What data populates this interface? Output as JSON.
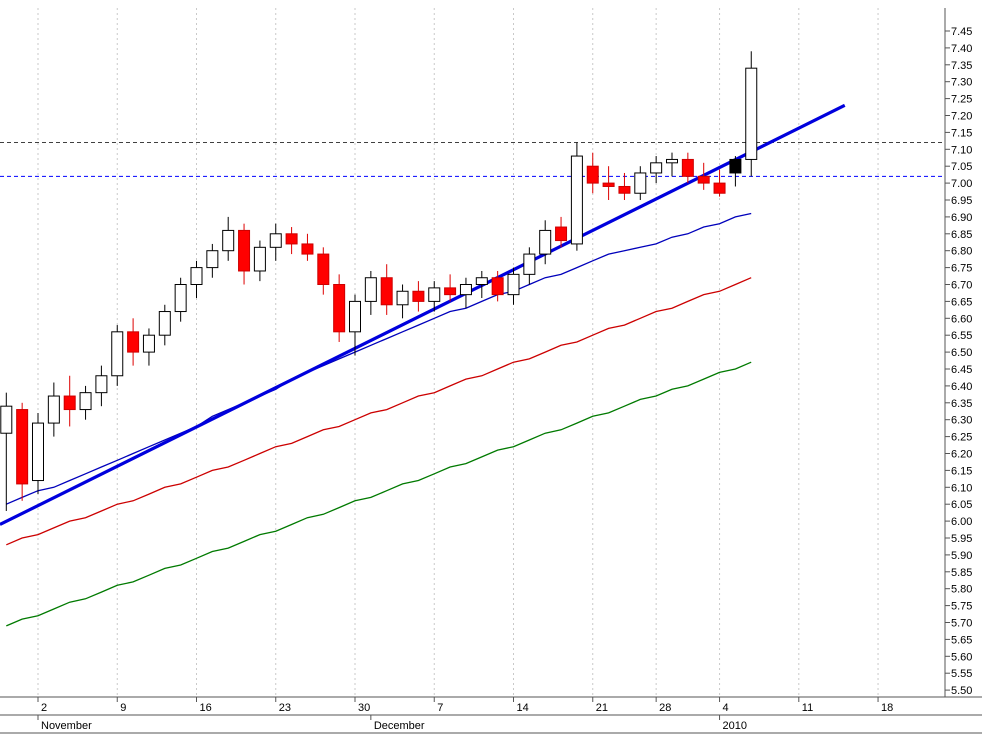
{
  "chart_data": {
    "type": "candlestick",
    "title": "",
    "xlabel": "",
    "ylabel": "",
    "grid": "vertical-weekly-dashed",
    "legend": "none",
    "y_axis": {
      "min": 5.5,
      "max": 7.45,
      "tick_step": 0.05,
      "tick_labels": [
        "7.45",
        "7.40",
        "7.35",
        "7.30",
        "7.25",
        "7.20",
        "7.15",
        "7.10",
        "7.05",
        "7.00",
        "6.95",
        "6.90",
        "6.85",
        "6.80",
        "6.75",
        "6.70",
        "6.65",
        "6.60",
        "6.55",
        "6.50",
        "6.45",
        "6.40",
        "6.35",
        "6.30",
        "6.25",
        "6.20",
        "6.15",
        "6.10",
        "6.05",
        "6.00",
        "5.95",
        "5.90",
        "5.85",
        "5.80",
        "5.75",
        "5.70",
        "5.65",
        "5.60",
        "5.55",
        "5.50"
      ]
    },
    "x_axis": {
      "week_ticks": [
        {
          "label": "2",
          "day": 2
        },
        {
          "label": "9",
          "day": 7
        },
        {
          "label": "16",
          "day": 12
        },
        {
          "label": "23",
          "day": 17
        },
        {
          "label": "30",
          "day": 22
        },
        {
          "label": "7",
          "day": 27
        },
        {
          "label": "14",
          "day": 32
        },
        {
          "label": "21",
          "day": 37
        },
        {
          "label": "28",
          "day": 41
        },
        {
          "label": "4",
          "day": 45
        },
        {
          "label": "11",
          "day": 50
        },
        {
          "label": "18",
          "day": 55
        }
      ],
      "month_labels": [
        {
          "label": "November",
          "day": 2
        },
        {
          "label": "December",
          "day": 23
        },
        {
          "label": "2010",
          "day": 45
        }
      ]
    },
    "candles": [
      {
        "d": "Oct 29",
        "o": 6.26,
        "h": 6.38,
        "l": 6.03,
        "c": 6.34
      },
      {
        "d": "Oct 30",
        "o": 6.33,
        "h": 6.35,
        "l": 6.06,
        "c": 6.11
      },
      {
        "d": "Nov 2",
        "o": 6.12,
        "h": 6.32,
        "l": 6.08,
        "c": 6.29
      },
      {
        "d": "Nov 3",
        "o": 6.29,
        "h": 6.41,
        "l": 6.25,
        "c": 6.37
      },
      {
        "d": "Nov 4",
        "o": 6.37,
        "h": 6.43,
        "l": 6.28,
        "c": 6.33
      },
      {
        "d": "Nov 5",
        "o": 6.33,
        "h": 6.4,
        "l": 6.3,
        "c": 6.38
      },
      {
        "d": "Nov 6",
        "o": 6.38,
        "h": 6.46,
        "l": 6.34,
        "c": 6.43
      },
      {
        "d": "Nov 9",
        "o": 6.43,
        "h": 6.58,
        "l": 6.4,
        "c": 6.56
      },
      {
        "d": "Nov 10",
        "o": 6.56,
        "h": 6.6,
        "l": 6.46,
        "c": 6.5
      },
      {
        "d": "Nov 11",
        "o": 6.5,
        "h": 6.57,
        "l": 6.46,
        "c": 6.55
      },
      {
        "d": "Nov 12",
        "o": 6.55,
        "h": 6.64,
        "l": 6.52,
        "c": 6.62
      },
      {
        "d": "Nov 13",
        "o": 6.62,
        "h": 6.72,
        "l": 6.59,
        "c": 6.7
      },
      {
        "d": "Nov 16",
        "o": 6.7,
        "h": 6.77,
        "l": 6.66,
        "c": 6.75
      },
      {
        "d": "Nov 17",
        "o": 6.75,
        "h": 6.82,
        "l": 6.72,
        "c": 6.8
      },
      {
        "d": "Nov 18",
        "o": 6.8,
        "h": 6.9,
        "l": 6.77,
        "c": 6.86
      },
      {
        "d": "Nov 19",
        "o": 6.86,
        "h": 6.88,
        "l": 6.7,
        "c": 6.74
      },
      {
        "d": "Nov 20",
        "o": 6.74,
        "h": 6.83,
        "l": 6.71,
        "c": 6.81
      },
      {
        "d": "Nov 23",
        "o": 6.81,
        "h": 6.88,
        "l": 6.77,
        "c": 6.85
      },
      {
        "d": "Nov 24",
        "o": 6.85,
        "h": 6.87,
        "l": 6.79,
        "c": 6.82
      },
      {
        "d": "Nov 25",
        "o": 6.82,
        "h": 6.85,
        "l": 6.77,
        "c": 6.79
      },
      {
        "d": "Nov 26",
        "o": 6.79,
        "h": 6.81,
        "l": 6.67,
        "c": 6.7
      },
      {
        "d": "Nov 27",
        "o": 6.7,
        "h": 6.73,
        "l": 6.53,
        "c": 6.56
      },
      {
        "d": "Nov 30",
        "o": 6.56,
        "h": 6.67,
        "l": 6.49,
        "c": 6.65
      },
      {
        "d": "Dec 1",
        "o": 6.65,
        "h": 6.74,
        "l": 6.61,
        "c": 6.72
      },
      {
        "d": "Dec 2",
        "o": 6.72,
        "h": 6.76,
        "l": 6.61,
        "c": 6.64
      },
      {
        "d": "Dec 3",
        "o": 6.64,
        "h": 6.7,
        "l": 6.6,
        "c": 6.68
      },
      {
        "d": "Dec 4",
        "o": 6.68,
        "h": 6.71,
        "l": 6.62,
        "c": 6.65
      },
      {
        "d": "Dec 7",
        "o": 6.65,
        "h": 6.71,
        "l": 6.62,
        "c": 6.69
      },
      {
        "d": "Dec 8",
        "o": 6.69,
        "h": 6.73,
        "l": 6.65,
        "c": 6.67
      },
      {
        "d": "Dec 9",
        "o": 6.67,
        "h": 6.72,
        "l": 6.63,
        "c": 6.7
      },
      {
        "d": "Dec 10",
        "o": 6.7,
        "h": 6.74,
        "l": 6.66,
        "c": 6.72
      },
      {
        "d": "Dec 11",
        "o": 6.72,
        "h": 6.74,
        "l": 6.65,
        "c": 6.67
      },
      {
        "d": "Dec 14",
        "o": 6.67,
        "h": 6.75,
        "l": 6.64,
        "c": 6.73
      },
      {
        "d": "Dec 15",
        "o": 6.73,
        "h": 6.81,
        "l": 6.7,
        "c": 6.79
      },
      {
        "d": "Dec 16",
        "o": 6.79,
        "h": 6.89,
        "l": 6.76,
        "c": 6.86
      },
      {
        "d": "Dec 17",
        "o": 6.87,
        "h": 6.9,
        "l": 6.81,
        "c": 6.83
      },
      {
        "d": "Dec 18",
        "o": 6.82,
        "h": 7.12,
        "l": 6.8,
        "c": 7.08
      },
      {
        "d": "Dec 21",
        "o": 7.05,
        "h": 7.09,
        "l": 6.97,
        "c": 7.0
      },
      {
        "d": "Dec 22",
        "o": 7.0,
        "h": 7.05,
        "l": 6.95,
        "c": 6.99
      },
      {
        "d": "Dec 23",
        "o": 6.99,
        "h": 7.03,
        "l": 6.95,
        "c": 6.97
      },
      {
        "d": "Dec 24",
        "o": 6.97,
        "h": 7.05,
        "l": 6.95,
        "c": 7.03
      },
      {
        "d": "Dec 28",
        "o": 7.03,
        "h": 7.08,
        "l": 7.0,
        "c": 7.06
      },
      {
        "d": "Dec 29",
        "o": 7.06,
        "h": 7.09,
        "l": 7.02,
        "c": 7.07
      },
      {
        "d": "Dec 30",
        "o": 7.07,
        "h": 7.09,
        "l": 7.0,
        "c": 7.02
      },
      {
        "d": "Dec 31",
        "o": 7.02,
        "h": 7.06,
        "l": 6.98,
        "c": 7.0
      },
      {
        "d": "Jan 4",
        "o": 7.0,
        "h": 7.04,
        "l": 6.96,
        "c": 6.97
      },
      {
        "d": "Jan 5",
        "o": 7.03,
        "h": 7.08,
        "l": 6.99,
        "c": 7.07,
        "black": true
      },
      {
        "d": "Jan 6",
        "o": 7.07,
        "h": 7.39,
        "l": 7.02,
        "c": 7.34
      }
    ],
    "overlays": {
      "ma_fast_blue": [
        6.05,
        6.07,
        6.09,
        6.1,
        6.12,
        6.14,
        6.16,
        6.18,
        6.2,
        6.22,
        6.24,
        6.26,
        6.28,
        6.31,
        6.33,
        6.35,
        6.37,
        6.39,
        6.42,
        6.44,
        6.46,
        6.48,
        6.5,
        6.52,
        6.54,
        6.56,
        6.58,
        6.6,
        6.62,
        6.63,
        6.65,
        6.67,
        6.68,
        6.7,
        6.72,
        6.73,
        6.75,
        6.77,
        6.79,
        6.8,
        6.81,
        6.82,
        6.84,
        6.85,
        6.87,
        6.88,
        6.9,
        6.91
      ],
      "ma_mid_red": [
        5.93,
        5.95,
        5.96,
        5.98,
        6.0,
        6.01,
        6.03,
        6.05,
        6.06,
        6.08,
        6.1,
        6.11,
        6.13,
        6.15,
        6.16,
        6.18,
        6.2,
        6.22,
        6.23,
        6.25,
        6.27,
        6.28,
        6.3,
        6.32,
        6.33,
        6.35,
        6.37,
        6.38,
        6.4,
        6.42,
        6.43,
        6.45,
        6.47,
        6.48,
        6.5,
        6.52,
        6.53,
        6.55,
        6.57,
        6.58,
        6.6,
        6.62,
        6.63,
        6.65,
        6.67,
        6.68,
        6.7,
        6.72
      ],
      "ma_slow_green": [
        5.69,
        5.71,
        5.72,
        5.74,
        5.76,
        5.77,
        5.79,
        5.81,
        5.82,
        5.84,
        5.86,
        5.87,
        5.89,
        5.91,
        5.92,
        5.94,
        5.96,
        5.97,
        5.99,
        6.01,
        6.02,
        6.04,
        6.06,
        6.07,
        6.09,
        6.11,
        6.12,
        6.14,
        6.16,
        6.17,
        6.19,
        6.21,
        6.22,
        6.24,
        6.26,
        6.27,
        6.29,
        6.31,
        6.32,
        6.34,
        6.36,
        6.37,
        6.39,
        6.4,
        6.42,
        6.44,
        6.45,
        6.47
      ],
      "trend_line": {
        "from_day": -0.4,
        "from_price": 5.99,
        "to_day": 52.9,
        "to_price": 7.23
      },
      "h_lines": [
        {
          "price": 7.12,
          "color": "#404040",
          "name": "resistance-line"
        },
        {
          "price": 7.02,
          "color": "#0000ff",
          "name": "support-line"
        }
      ]
    },
    "colors": {
      "background": "#ffffff",
      "grid": "#c9c9c9",
      "up_fill": "#ffffff",
      "up_stroke": "#000000",
      "down_fill": "#ff0000",
      "down_stroke": "#cc0000",
      "down_wick": "#dd0000",
      "special_fill": "#000000",
      "ma_fast": "#0000bb",
      "ma_mid": "#cc0000",
      "ma_slow": "#007a00",
      "trendline": "#0000dd",
      "axis": "#555555",
      "text": "#000000"
    }
  }
}
